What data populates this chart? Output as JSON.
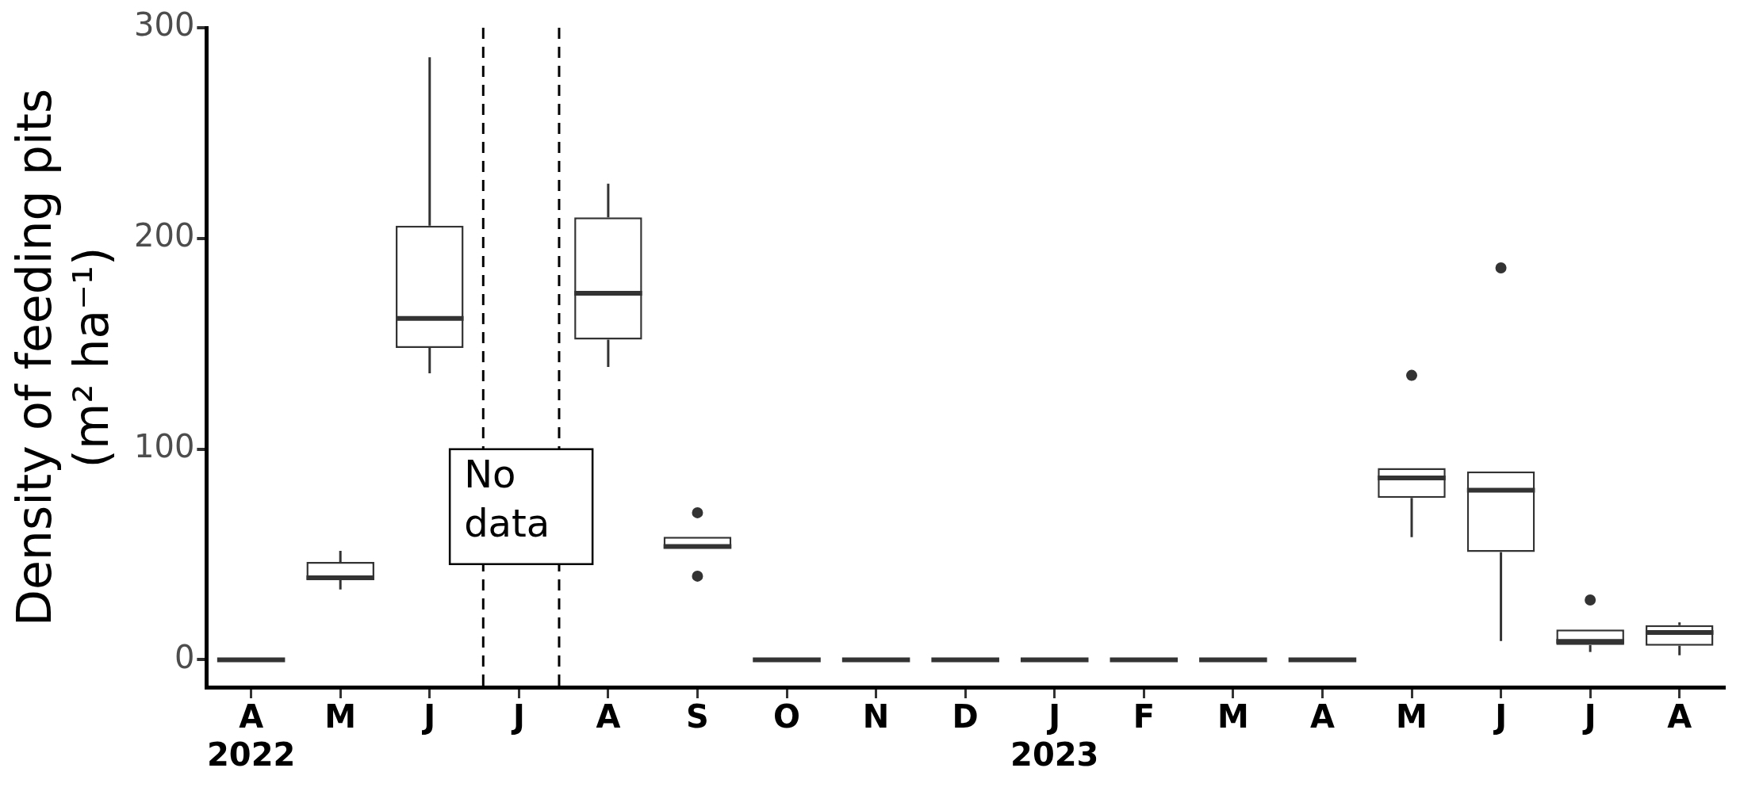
{
  "chart_data": {
    "type": "box",
    "ylabel": "Density of feeding pits\n(m² ha⁻¹)",
    "categories": [
      "A\n2022",
      "M",
      "J",
      "J",
      "A",
      "S",
      "O",
      "N",
      "D",
      "J\n2023",
      "F",
      "M",
      "A",
      "M",
      "J",
      "J",
      "A"
    ],
    "boxes": [
      {
        "low": 0,
        "q1": 0,
        "median": 0,
        "q3": 0,
        "high": 0
      },
      {
        "low": 33.4,
        "q1": 38,
        "median": 38.9,
        "q3": 46.4,
        "high": 51.7
      },
      {
        "low": 136,
        "q1": 148,
        "median": 162,
        "q3": 206,
        "high": 286
      },
      null,
      {
        "low": 139,
        "q1": 152,
        "median": 174,
        "q3": 210,
        "high": 226
      },
      {
        "low": 52.7,
        "q1": 52.7,
        "median": 53.8,
        "q3": 58.4,
        "high": 58.4,
        "outliers": [
          69.8,
          39.7
        ]
      },
      {
        "low": 0,
        "q1": 0,
        "median": 0,
        "q3": 0,
        "high": 0
      },
      {
        "low": 0,
        "q1": 0,
        "median": 0,
        "q3": 0,
        "high": 0
      },
      {
        "low": 0,
        "q1": 0,
        "median": 0,
        "q3": 0,
        "high": 0
      },
      {
        "low": 0,
        "q1": 0,
        "median": 0,
        "q3": 0,
        "high": 0
      },
      {
        "low": 0,
        "q1": 0,
        "median": 0,
        "q3": 0,
        "high": 0
      },
      {
        "low": 0,
        "q1": 0,
        "median": 0,
        "q3": 0,
        "high": 0
      },
      {
        "low": 0,
        "q1": 0,
        "median": 0,
        "q3": 0,
        "high": 0
      },
      {
        "low": 58.2,
        "q1": 76.8,
        "median": 86.3,
        "q3": 91,
        "high": 91,
        "outliers": [
          135
        ]
      },
      {
        "low": 8.9,
        "q1": 51.1,
        "median": 80.5,
        "q3": 89.4,
        "high": 89.4,
        "outliers": [
          186
        ]
      },
      {
        "low": 3.7,
        "q1": 7,
        "median": 8.7,
        "q3": 14.4,
        "high": 14.4,
        "outliers": [
          28.4
        ]
      },
      {
        "low": 2.1,
        "q1": 6.7,
        "median": 13,
        "q3": 16.4,
        "high": 17.8
      }
    ],
    "color": "#333333",
    "ylim": [
      -13,
      300
    ],
    "yticks": [
      0,
      100,
      200,
      300
    ],
    "grid": false,
    "legend": false,
    "annotations": [
      "No data"
    ]
  }
}
